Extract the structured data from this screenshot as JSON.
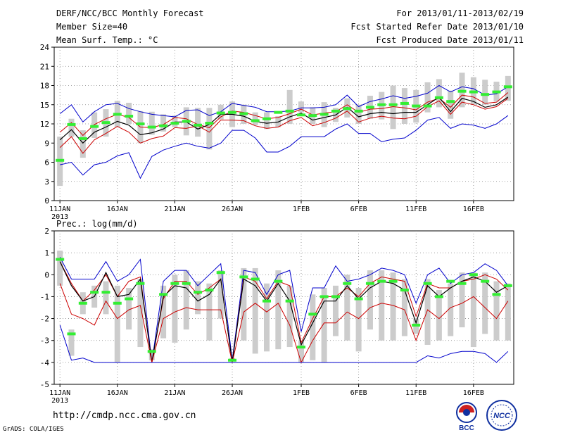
{
  "header": {
    "title": "DERF/NCC/BCC Monthly Forecast",
    "member_size": "Member Size=40",
    "temp_label": "Mean Surf. Temp.: °C",
    "period": "For 2013/01/11-2013/02/19",
    "started": "Fcst Started Refer Date 2013/01/10",
    "produced": "Fcst Produced Date 2013/01/11"
  },
  "footer": {
    "url": "http://cmdp.ncc.cma.gov.cn",
    "grads": "GrADS: COLA/IGES",
    "bcc_logo": "BCC",
    "ncc_logo": "NCC"
  },
  "colors": {
    "max": "#0000cc",
    "min": "#0000cc",
    "p90": "#cc0000",
    "p10": "#cc0000",
    "mean": "#000000",
    "obs": "#33ee33",
    "box": "#cccccc"
  },
  "chart_data": [
    {
      "type": "line",
      "title": "Mean Surf. Temp.: °C",
      "xlabel": "",
      "ylabel": "°C",
      "ylim": [
        0,
        24
      ],
      "yticks": [
        0,
        3,
        6,
        9,
        12,
        15,
        18,
        21,
        24
      ],
      "grid": true,
      "x_tick_labels": [
        "11JAN",
        "16JAN",
        "21JAN",
        "26JAN",
        "1FEB",
        "6FEB",
        "11FEB",
        "16FEB"
      ],
      "x_tick_days": [
        0,
        5,
        10,
        15,
        21,
        26,
        31,
        36
      ],
      "year_label": "2013",
      "days": 40,
      "series": [
        {
          "name": "max",
          "values": [
            13.6,
            15.0,
            12.3,
            13.9,
            15.0,
            15.2,
            14.4,
            13.9,
            13.5,
            13.3,
            13.1,
            14.1,
            14.2,
            13.3,
            13.9,
            15.2,
            14.9,
            14.6,
            13.9,
            13.9,
            14.0,
            14.5,
            14.5,
            14.6,
            15.0,
            16.5,
            14.7,
            15.5,
            15.9,
            16.4,
            16.0,
            16.3,
            16.8,
            18.0,
            17.0,
            17.8,
            17.5,
            16.5,
            16.7,
            17.8
          ]
        },
        {
          "name": "p90",
          "values": [
            10.7,
            12.2,
            10.2,
            11.9,
            12.8,
            13.5,
            13.0,
            11.5,
            11.4,
            11.9,
            13.0,
            12.8,
            11.9,
            11.4,
            13.1,
            14.0,
            13.8,
            13.3,
            12.8,
            13.0,
            13.6,
            14.3,
            13.4,
            13.7,
            13.9,
            15.0,
            13.8,
            14.3,
            14.4,
            14.7,
            14.5,
            14.2,
            15.4,
            16.0,
            14.6,
            16.5,
            16.2,
            15.2,
            15.4,
            16.9
          ]
        },
        {
          "name": "mean",
          "values": [
            9.5,
            11.1,
            9.0,
            10.7,
            11.5,
            12.4,
            11.8,
            10.3,
            10.6,
            11.2,
            12.3,
            12.3,
            11.2,
            11.9,
            13.5,
            13.5,
            13.2,
            12.4,
            12.1,
            12.3,
            13.1,
            13.7,
            12.6,
            13.0,
            13.4,
            14.6,
            13.1,
            13.6,
            13.8,
            13.6,
            13.8,
            13.8,
            15.0,
            16.2,
            13.9,
            16.0,
            15.5,
            14.6,
            15.0,
            16.2
          ]
        },
        {
          "name": "p10",
          "values": [
            8.3,
            10.0,
            7.4,
            9.5,
            10.5,
            11.6,
            10.7,
            9.0,
            9.7,
            10.1,
            11.4,
            11.3,
            11.7,
            10.7,
            12.6,
            12.6,
            12.5,
            11.7,
            11.3,
            11.5,
            12.5,
            13.0,
            11.7,
            12.2,
            12.9,
            14.0,
            12.3,
            12.9,
            13.2,
            12.9,
            12.8,
            13.2,
            14.7,
            15.6,
            13.5,
            15.4,
            15.0,
            14.3,
            14.7,
            16.0
          ]
        },
        {
          "name": "min",
          "values": [
            5.6,
            6.0,
            4.0,
            5.6,
            6.0,
            7.0,
            7.5,
            3.5,
            6.9,
            7.9,
            8.5,
            9.0,
            8.5,
            8.2,
            9.0,
            11.0,
            11.0,
            9.8,
            7.6,
            7.6,
            8.5,
            10.0,
            10.0,
            10.0,
            11.2,
            12.0,
            10.5,
            10.5,
            9.2,
            9.6,
            9.8,
            11.0,
            12.6,
            13.0,
            11.3,
            12.0,
            11.8,
            11.3,
            12.0,
            13.3
          ]
        },
        {
          "name": "observed",
          "values": [
            6.3,
            11.9,
            9.7,
            11.6,
            12.2,
            13.5,
            13.2,
            12.0,
            11.5,
            11.7,
            12.1,
            12.4,
            11.8,
            12.1,
            13.7,
            13.8,
            13.6,
            12.5,
            12.8,
            13.8,
            14.0,
            13.4,
            13.3,
            13.5,
            14.0,
            14.4,
            14.0,
            14.6,
            15.0,
            15.0,
            15.2,
            14.8,
            14.8,
            16.1,
            15.5,
            17.1,
            17.0,
            16.6,
            17.0,
            17.8
          ]
        }
      ],
      "box_low": [
        2.3,
        10.0,
        6.7,
        9.8,
        10.0,
        11.5,
        12.0,
        9.0,
        10.3,
        10.8,
        11.5,
        10.2,
        10.0,
        8.0,
        12.7,
        11.5,
        12.0,
        11.8,
        11.2,
        11.5,
        12.0,
        13.8,
        12.0,
        11.5,
        12.3,
        13.0,
        12.0,
        12.8,
        12.7,
        11.2,
        12.0,
        12.2,
        13.8,
        14.6,
        12.8,
        14.6,
        15.0,
        15.0,
        15.5,
        15.6
      ],
      "box_high": [
        10.0,
        12.8,
        11.0,
        13.8,
        14.3,
        15.6,
        15.3,
        14.0,
        13.9,
        13.5,
        13.3,
        14.6,
        14.5,
        14.5,
        15.0,
        15.5,
        15.0,
        13.8,
        13.8,
        13.2,
        17.3,
        15.5,
        14.6,
        15.4,
        14.5,
        16.0,
        15.0,
        16.4,
        17.0,
        18.0,
        17.6,
        17.3,
        18.5,
        19.0,
        17.2,
        20.0,
        19.3,
        18.9,
        18.6,
        19.5
      ]
    },
    {
      "type": "line",
      "title": "Prec.: log(mm/d)",
      "xlabel": "",
      "ylabel": "log(mm/d)",
      "ylim": [
        -5,
        2
      ],
      "yticks": [
        -5,
        -4,
        -3,
        -2,
        -1,
        0,
        1,
        2
      ],
      "grid": true,
      "x_tick_labels": [
        "11JAN",
        "16JAN",
        "21JAN",
        "26JAN",
        "1FEB",
        "6FEB",
        "11FEB",
        "16FEB"
      ],
      "x_tick_days": [
        0,
        5,
        10,
        15,
        21,
        26,
        31,
        36
      ],
      "year_label": "2013",
      "days": 40,
      "series": [
        {
          "name": "max",
          "values": [
            0.8,
            -0.2,
            -0.2,
            -0.2,
            0.6,
            -0.3,
            0.0,
            0.7,
            -4.0,
            -0.3,
            0.2,
            0.2,
            -0.5,
            0.0,
            0.5,
            -3.9,
            0.2,
            0.1,
            -0.9,
            0.0,
            0.2,
            -2.6,
            -0.6,
            -0.6,
            0.4,
            -0.3,
            -0.2,
            0.0,
            0.3,
            0.2,
            0.0,
            -1.3,
            0.0,
            0.3,
            -0.4,
            0.0,
            0.1,
            0.5,
            0.2,
            -0.5
          ]
        },
        {
          "name": "p90",
          "values": [
            0.6,
            -0.4,
            -1.2,
            -0.7,
            0.0,
            -1.0,
            -0.3,
            -0.1,
            -4.0,
            -1.1,
            -0.3,
            -0.3,
            -0.9,
            -0.6,
            -0.2,
            -4.0,
            -0.1,
            -0.3,
            -1.1,
            -0.3,
            -0.5,
            -3.1,
            -2.0,
            -1.0,
            -1.0,
            -0.6,
            -1.0,
            -0.4,
            -0.1,
            -0.2,
            -0.3,
            -1.9,
            -0.4,
            -0.6,
            -0.6,
            -0.3,
            -0.2,
            0.0,
            -0.2,
            -0.7
          ]
        },
        {
          "name": "mean",
          "values": [
            0.6,
            -0.5,
            -1.2,
            -1.0,
            0.1,
            -1.0,
            -0.9,
            -0.2,
            -4.0,
            -1.0,
            -0.5,
            -0.6,
            -1.2,
            -0.9,
            -0.2,
            -4.0,
            -0.2,
            -0.5,
            -1.2,
            -0.4,
            -1.2,
            -3.2,
            -2.2,
            -1.2,
            -1.2,
            -0.5,
            -1.1,
            -0.6,
            -0.3,
            -0.4,
            -0.7,
            -2.2,
            -0.5,
            -1.0,
            -0.6,
            -0.3,
            -0.1,
            -0.3,
            -0.8,
            -0.5
          ]
        },
        {
          "name": "p10",
          "values": [
            -0.4,
            -1.8,
            -2.0,
            -2.3,
            -1.2,
            -2.0,
            -1.6,
            -1.4,
            -4.0,
            -2.0,
            -1.7,
            -1.5,
            -1.6,
            -1.6,
            -1.6,
            -4.0,
            -1.7,
            -1.3,
            -1.7,
            -1.3,
            -2.3,
            -4.0,
            -3.0,
            -2.2,
            -2.2,
            -1.7,
            -2.0,
            -1.5,
            -1.3,
            -1.4,
            -1.6,
            -3.0,
            -1.6,
            -2.0,
            -1.5,
            -1.3,
            -1.0,
            -1.5,
            -2.0,
            -1.2
          ]
        },
        {
          "name": "min",
          "values": [
            -2.3,
            -3.9,
            -3.8,
            -4.0,
            -4.0,
            -4.0,
            -4.0,
            -4.0,
            -4.0,
            -4.0,
            -4.0,
            -4.0,
            -4.0,
            -4.0,
            -4.0,
            -4.0,
            -4.0,
            -4.0,
            -4.0,
            -4.0,
            -4.0,
            -4.0,
            -4.0,
            -4.0,
            -4.0,
            -4.0,
            -4.0,
            -4.0,
            -4.0,
            -4.0,
            -4.0,
            -4.0,
            -3.7,
            -3.8,
            -3.6,
            -3.5,
            -3.5,
            -3.6,
            -4.0,
            -3.5
          ]
        },
        {
          "name": "observed",
          "values": [
            0.7,
            -2.7,
            -1.3,
            -0.8,
            -0.8,
            -1.3,
            -1.1,
            -0.4,
            -3.5,
            -0.9,
            -0.4,
            -0.4,
            -0.8,
            -0.7,
            0.1,
            -3.9,
            -0.1,
            -0.2,
            -1.2,
            -0.3,
            -1.2,
            -3.3,
            -1.8,
            -1.0,
            -1.0,
            -0.4,
            -1.1,
            -0.4,
            -0.3,
            -0.3,
            -0.7,
            -2.3,
            -0.4,
            -1.0,
            -0.3,
            -0.4,
            0.0,
            -0.3,
            -0.9,
            -0.5
          ]
        }
      ],
      "box_low": [
        -0.5,
        -3.7,
        -1.8,
        -1.5,
        -1.8,
        -4.0,
        -2.5,
        -3.3,
        -3.9,
        -2.9,
        -3.1,
        -2.5,
        -1.8,
        -3.0,
        -2.0,
        -3.9,
        -3.0,
        -3.6,
        -3.5,
        -3.4,
        -3.3,
        -4.0,
        -3.9,
        -4.0,
        -2.8,
        -3.0,
        -3.5,
        -2.5,
        -3.0,
        -3.0,
        -2.8,
        -2.7,
        -3.2,
        -3.0,
        -2.8,
        -2.4,
        -3.3,
        -2.7,
        -3.0,
        -3.0
      ],
      "box_high": [
        1.1,
        -2.5,
        -0.8,
        -0.5,
        -0.3,
        -0.5,
        -0.6,
        -0.2,
        -3.4,
        -0.5,
        0.0,
        0.2,
        -0.3,
        -0.4,
        0.2,
        -3.8,
        0.3,
        0.3,
        -0.4,
        0.2,
        -0.5,
        -3.0,
        -0.9,
        -0.6,
        -0.5,
        0.0,
        -0.6,
        0.2,
        0.2,
        0.1,
        -0.2,
        -2.0,
        -0.2,
        -0.7,
        -0.4,
        0.1,
        0.1,
        0.1,
        -0.3,
        -0.4
      ]
    }
  ]
}
